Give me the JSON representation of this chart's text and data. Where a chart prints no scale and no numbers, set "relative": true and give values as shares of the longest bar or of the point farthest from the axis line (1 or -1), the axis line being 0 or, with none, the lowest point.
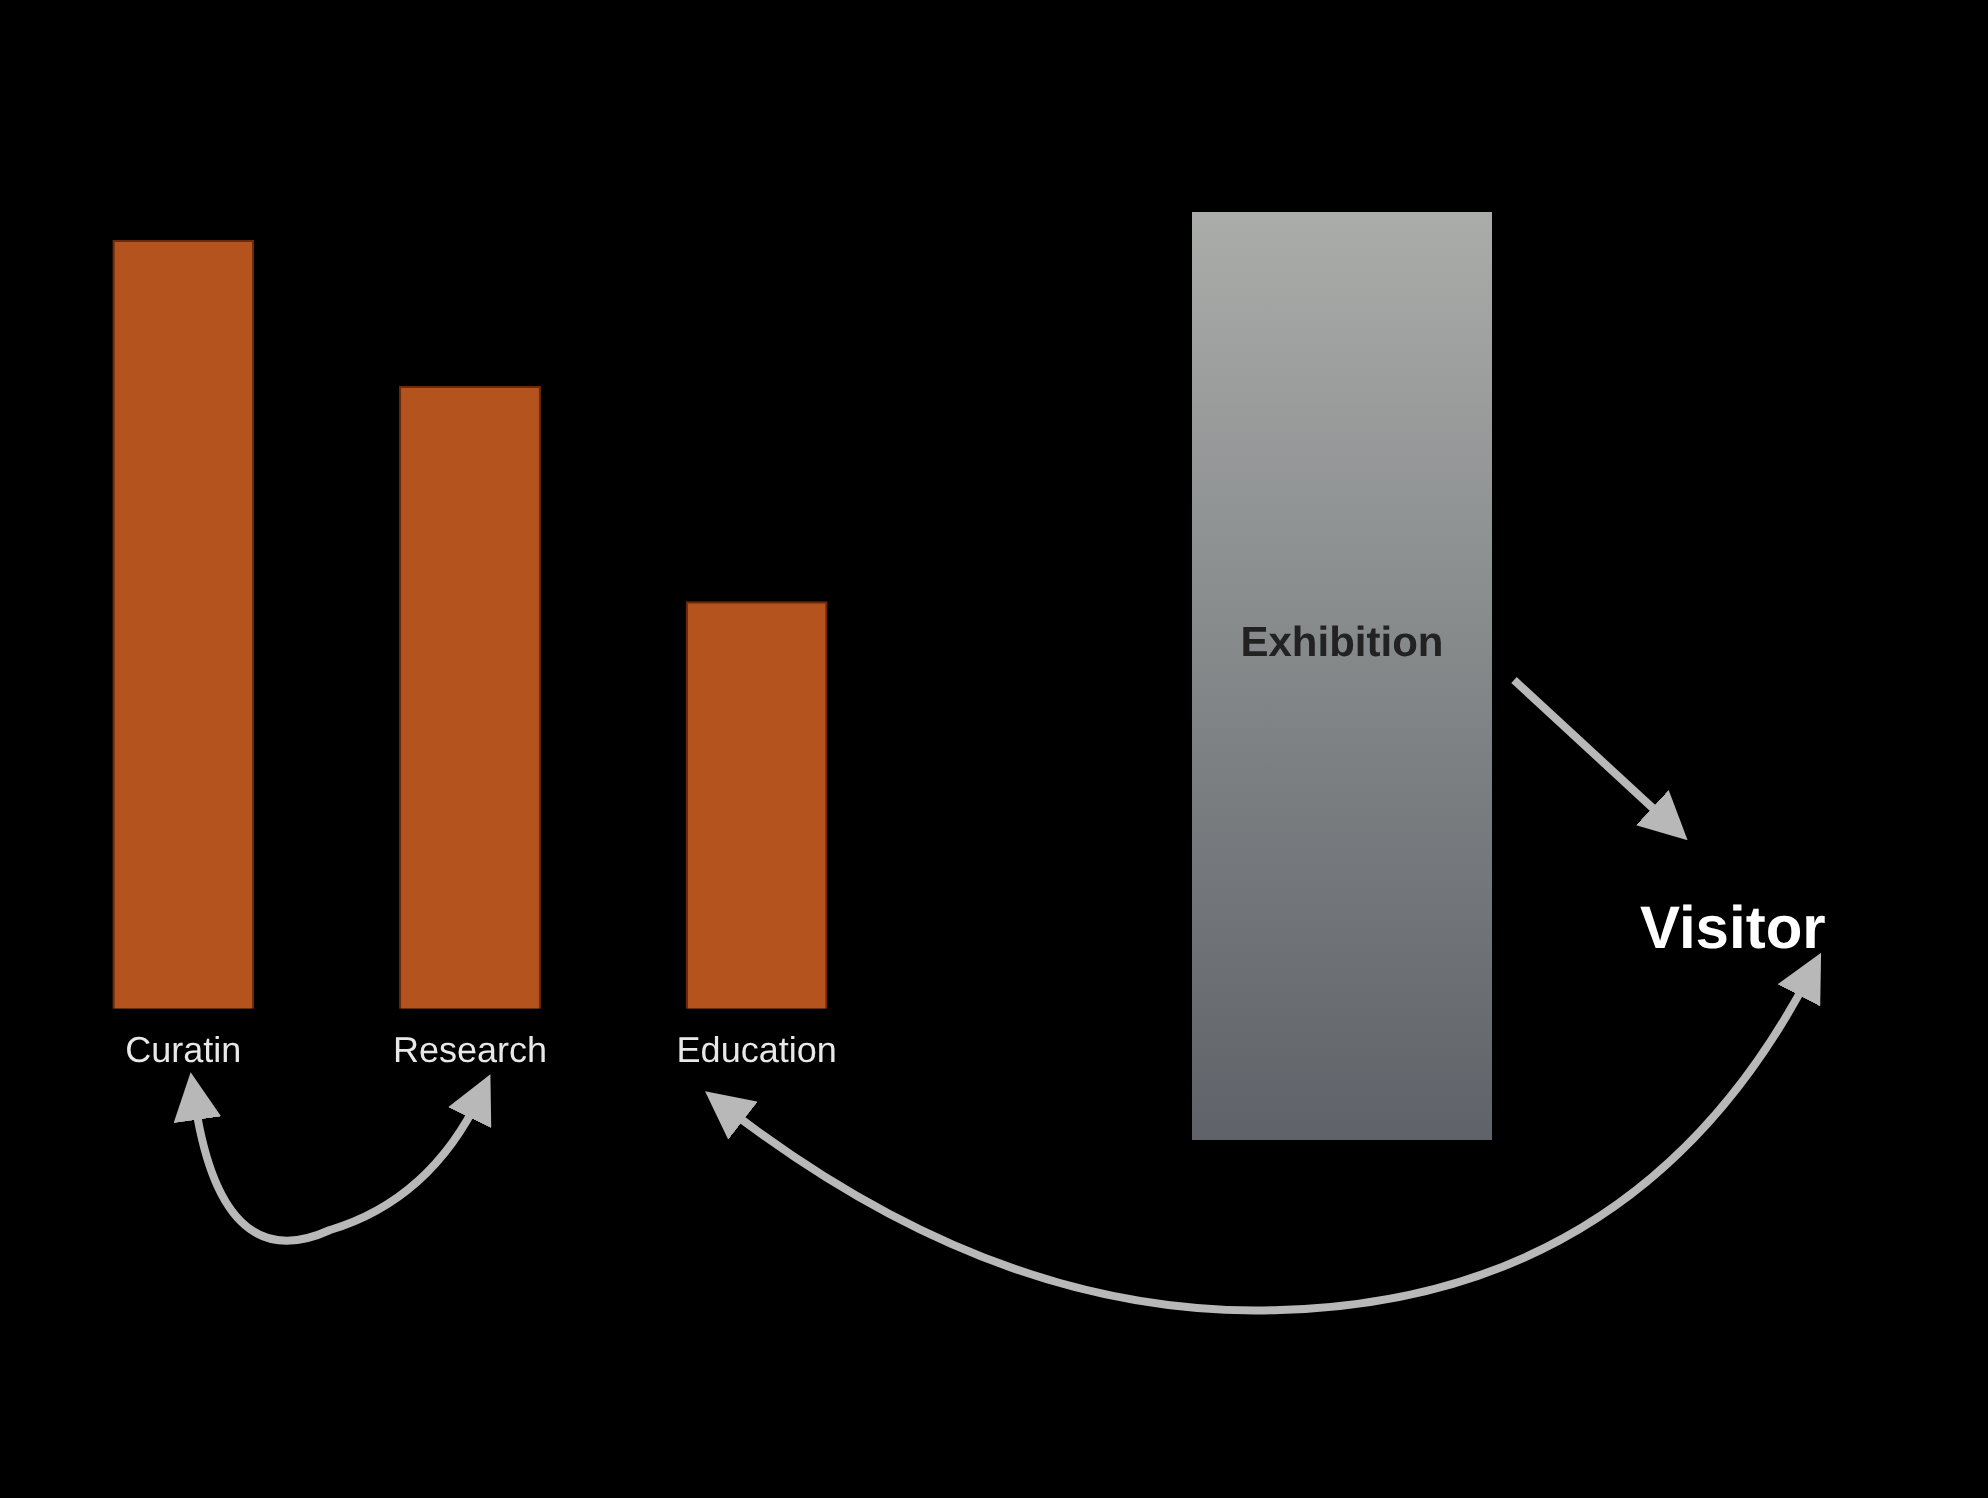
{
  "chart_data": {
    "type": "bar",
    "relative": true,
    "categories": [
      "Curatin",
      "Research",
      "Education"
    ],
    "values": [
      1,
      0.81,
      0.53
    ],
    "color": "#b5531f",
    "legend": false,
    "annotations": [
      "Exhibition",
      "Visitor"
    ]
  }
}
